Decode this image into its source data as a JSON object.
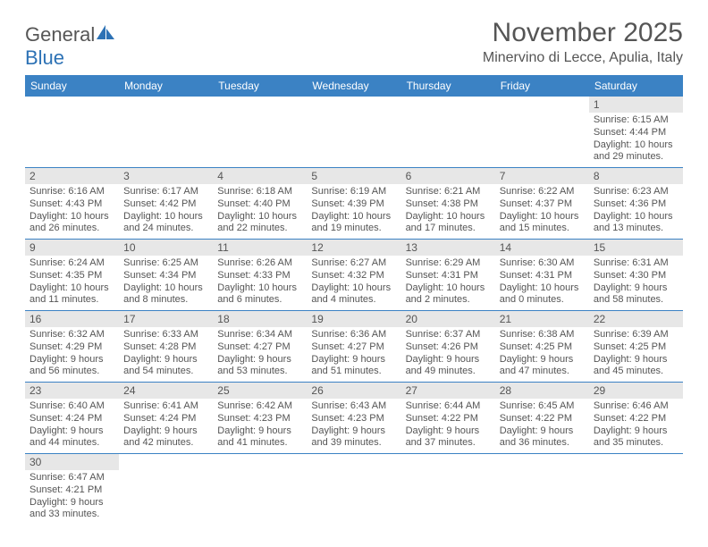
{
  "logo": {
    "word1": "General",
    "word2": "Blue"
  },
  "title": "November 2025",
  "location": "Minervino di Lecce, Apulia, Italy",
  "colors": {
    "header_bg": "#3b82c4",
    "header_text": "#ffffff",
    "daynum_bg": "#e7e7e7",
    "text": "#555555",
    "row_divider": "#3b82c4",
    "page_bg": "#ffffff"
  },
  "typography": {
    "title_fontsize": 30,
    "location_fontsize": 16,
    "dayheader_fontsize": 12,
    "body_fontsize": 11
  },
  "layout": {
    "columns": 7,
    "rows": 6,
    "first_day_column": 6,
    "last_day": 30
  },
  "day_headers": [
    "Sunday",
    "Monday",
    "Tuesday",
    "Wednesday",
    "Thursday",
    "Friday",
    "Saturday"
  ],
  "days": [
    {
      "n": 1,
      "sunrise": "6:15 AM",
      "sunset": "4:44 PM",
      "daylight": "10 hours and 29 minutes."
    },
    {
      "n": 2,
      "sunrise": "6:16 AM",
      "sunset": "4:43 PM",
      "daylight": "10 hours and 26 minutes."
    },
    {
      "n": 3,
      "sunrise": "6:17 AM",
      "sunset": "4:42 PM",
      "daylight": "10 hours and 24 minutes."
    },
    {
      "n": 4,
      "sunrise": "6:18 AM",
      "sunset": "4:40 PM",
      "daylight": "10 hours and 22 minutes."
    },
    {
      "n": 5,
      "sunrise": "6:19 AM",
      "sunset": "4:39 PM",
      "daylight": "10 hours and 19 minutes."
    },
    {
      "n": 6,
      "sunrise": "6:21 AM",
      "sunset": "4:38 PM",
      "daylight": "10 hours and 17 minutes."
    },
    {
      "n": 7,
      "sunrise": "6:22 AM",
      "sunset": "4:37 PM",
      "daylight": "10 hours and 15 minutes."
    },
    {
      "n": 8,
      "sunrise": "6:23 AM",
      "sunset": "4:36 PM",
      "daylight": "10 hours and 13 minutes."
    },
    {
      "n": 9,
      "sunrise": "6:24 AM",
      "sunset": "4:35 PM",
      "daylight": "10 hours and 11 minutes."
    },
    {
      "n": 10,
      "sunrise": "6:25 AM",
      "sunset": "4:34 PM",
      "daylight": "10 hours and 8 minutes."
    },
    {
      "n": 11,
      "sunrise": "6:26 AM",
      "sunset": "4:33 PM",
      "daylight": "10 hours and 6 minutes."
    },
    {
      "n": 12,
      "sunrise": "6:27 AM",
      "sunset": "4:32 PM",
      "daylight": "10 hours and 4 minutes."
    },
    {
      "n": 13,
      "sunrise": "6:29 AM",
      "sunset": "4:31 PM",
      "daylight": "10 hours and 2 minutes."
    },
    {
      "n": 14,
      "sunrise": "6:30 AM",
      "sunset": "4:31 PM",
      "daylight": "10 hours and 0 minutes."
    },
    {
      "n": 15,
      "sunrise": "6:31 AM",
      "sunset": "4:30 PM",
      "daylight": "9 hours and 58 minutes."
    },
    {
      "n": 16,
      "sunrise": "6:32 AM",
      "sunset": "4:29 PM",
      "daylight": "9 hours and 56 minutes."
    },
    {
      "n": 17,
      "sunrise": "6:33 AM",
      "sunset": "4:28 PM",
      "daylight": "9 hours and 54 minutes."
    },
    {
      "n": 18,
      "sunrise": "6:34 AM",
      "sunset": "4:27 PM",
      "daylight": "9 hours and 53 minutes."
    },
    {
      "n": 19,
      "sunrise": "6:36 AM",
      "sunset": "4:27 PM",
      "daylight": "9 hours and 51 minutes."
    },
    {
      "n": 20,
      "sunrise": "6:37 AM",
      "sunset": "4:26 PM",
      "daylight": "9 hours and 49 minutes."
    },
    {
      "n": 21,
      "sunrise": "6:38 AM",
      "sunset": "4:25 PM",
      "daylight": "9 hours and 47 minutes."
    },
    {
      "n": 22,
      "sunrise": "6:39 AM",
      "sunset": "4:25 PM",
      "daylight": "9 hours and 45 minutes."
    },
    {
      "n": 23,
      "sunrise": "6:40 AM",
      "sunset": "4:24 PM",
      "daylight": "9 hours and 44 minutes."
    },
    {
      "n": 24,
      "sunrise": "6:41 AM",
      "sunset": "4:24 PM",
      "daylight": "9 hours and 42 minutes."
    },
    {
      "n": 25,
      "sunrise": "6:42 AM",
      "sunset": "4:23 PM",
      "daylight": "9 hours and 41 minutes."
    },
    {
      "n": 26,
      "sunrise": "6:43 AM",
      "sunset": "4:23 PM",
      "daylight": "9 hours and 39 minutes."
    },
    {
      "n": 27,
      "sunrise": "6:44 AM",
      "sunset": "4:22 PM",
      "daylight": "9 hours and 37 minutes."
    },
    {
      "n": 28,
      "sunrise": "6:45 AM",
      "sunset": "4:22 PM",
      "daylight": "9 hours and 36 minutes."
    },
    {
      "n": 29,
      "sunrise": "6:46 AM",
      "sunset": "4:22 PM",
      "daylight": "9 hours and 35 minutes."
    },
    {
      "n": 30,
      "sunrise": "6:47 AM",
      "sunset": "4:21 PM",
      "daylight": "9 hours and 33 minutes."
    }
  ],
  "labels": {
    "sunrise": "Sunrise:",
    "sunset": "Sunset:",
    "daylight": "Daylight:"
  }
}
